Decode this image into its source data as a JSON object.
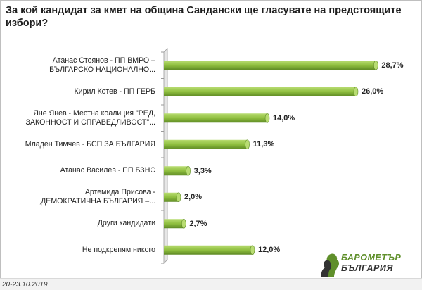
{
  "title": "За кой кандидат за кмет на община Сандански ще гласувате на предстоящите избори?",
  "footer": {
    "date": "20-23.10.2019"
  },
  "logo": {
    "line1": "БАРОМЕТЪР",
    "line2": "БЪЛГАРИЯ"
  },
  "colors": {
    "bar": "#8fbf3f",
    "bar_dark": "#5e8a25",
    "bar_light": "#b8dc72"
  },
  "chart_data": {
    "type": "bar",
    "orientation": "horizontal",
    "title": "За кой кандидат за кмет на община Сандански ще гласувате на предстоящите избори?",
    "categories": [
      [
        "Атанас Стоянов - ПП ВМРО –",
        "БЪЛГАРСКО НАЦИОНАЛНО..."
      ],
      [
        "Кирил Котев - ПП ГЕРБ"
      ],
      [
        "Яне Янев - Местна коалиция \"РЕД,",
        "ЗАКОННОСТ И СПРАВЕДЛИВОСТ\"..."
      ],
      [
        "Младен Тимчев - БСП ЗА БЪЛГАРИЯ"
      ],
      [
        "Атанас Василев - ПП БЗНС"
      ],
      [
        "Артемида Присова -",
        "„ДЕМОКРАТИЧНА БЪЛГАРИЯ –..."
      ],
      [
        "Други кандидати"
      ],
      [
        "Не подкрепям никого"
      ]
    ],
    "values": [
      28.7,
      26.0,
      14.0,
      11.3,
      3.3,
      2.0,
      2.7,
      12.0
    ],
    "value_labels": [
      "28,7%",
      "26,0%",
      "14,0%",
      "11,3%",
      "3,3%",
      "2,0%",
      "2,7%",
      "12,0%"
    ],
    "xlim": [
      0,
      30
    ],
    "legend": "none"
  }
}
